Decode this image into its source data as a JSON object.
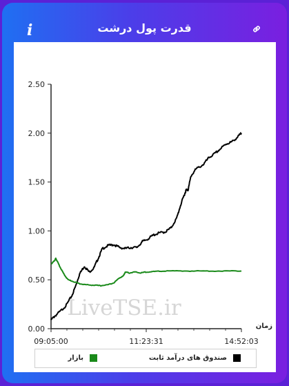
{
  "header": {
    "title": "قدرت پول درشت",
    "info_glyph": "i",
    "info_icon": "info-icon",
    "link_icon": "link-icon"
  },
  "watermark": "LiveTSE.ir",
  "chart_data": {
    "type": "line",
    "title": "",
    "xlabel": "زمان",
    "ylabel": "",
    "x_ticks": [
      "09:05:00",
      "11:23:31",
      "14:52:03"
    ],
    "ylim": [
      0,
      2.5
    ],
    "y_ticks": [
      "0.00",
      "0.50",
      "1.00",
      "1.50",
      "2.00",
      "2.50"
    ],
    "grid": false,
    "legend_position": "bottom",
    "series": [
      {
        "name": "صندوق های درآمد ثابت",
        "color": "#000000",
        "points": [
          [
            0.0,
            0.09
          ],
          [
            0.02,
            0.13
          ],
          [
            0.05,
            0.18
          ],
          [
            0.08,
            0.24
          ],
          [
            0.11,
            0.34
          ],
          [
            0.13,
            0.44
          ],
          [
            0.15,
            0.56
          ],
          [
            0.175,
            0.64
          ],
          [
            0.2,
            0.58
          ],
          [
            0.225,
            0.62
          ],
          [
            0.25,
            0.73
          ],
          [
            0.27,
            0.82
          ],
          [
            0.3,
            0.85
          ],
          [
            0.33,
            0.86
          ],
          [
            0.36,
            0.83
          ],
          [
            0.39,
            0.82
          ],
          [
            0.42,
            0.83
          ],
          [
            0.45,
            0.83
          ],
          [
            0.48,
            0.89
          ],
          [
            0.51,
            0.92
          ],
          [
            0.54,
            0.96
          ],
          [
            0.57,
            0.98
          ],
          [
            0.6,
            0.99
          ],
          [
            0.63,
            1.03
          ],
          [
            0.66,
            1.13
          ],
          [
            0.68,
            1.26
          ],
          [
            0.7,
            1.37
          ],
          [
            0.71,
            1.42
          ],
          [
            0.72,
            1.42
          ],
          [
            0.735,
            1.56
          ],
          [
            0.76,
            1.63
          ],
          [
            0.8,
            1.68
          ],
          [
            0.83,
            1.75
          ],
          [
            0.86,
            1.79
          ],
          [
            0.89,
            1.84
          ],
          [
            0.92,
            1.89
          ],
          [
            0.95,
            1.91
          ],
          [
            0.98,
            1.96
          ],
          [
            1.0,
            2.0
          ]
        ]
      },
      {
        "name": "بازار",
        "color": "#1a8a1a",
        "points": [
          [
            0.0,
            0.66
          ],
          [
            0.01,
            0.68
          ],
          [
            0.02,
            0.7
          ],
          [
            0.025,
            0.72
          ],
          [
            0.035,
            0.68
          ],
          [
            0.05,
            0.62
          ],
          [
            0.07,
            0.55
          ],
          [
            0.09,
            0.5
          ],
          [
            0.12,
            0.48
          ],
          [
            0.15,
            0.46
          ],
          [
            0.18,
            0.45
          ],
          [
            0.22,
            0.445
          ],
          [
            0.26,
            0.44
          ],
          [
            0.3,
            0.45
          ],
          [
            0.33,
            0.47
          ],
          [
            0.36,
            0.52
          ],
          [
            0.38,
            0.54
          ],
          [
            0.39,
            0.58
          ],
          [
            0.41,
            0.57
          ],
          [
            0.44,
            0.58
          ],
          [
            0.47,
            0.57
          ],
          [
            0.5,
            0.58
          ],
          [
            0.55,
            0.585
          ],
          [
            0.6,
            0.59
          ],
          [
            0.7,
            0.59
          ],
          [
            0.8,
            0.59
          ],
          [
            0.9,
            0.59
          ],
          [
            1.0,
            0.59
          ]
        ]
      }
    ]
  }
}
